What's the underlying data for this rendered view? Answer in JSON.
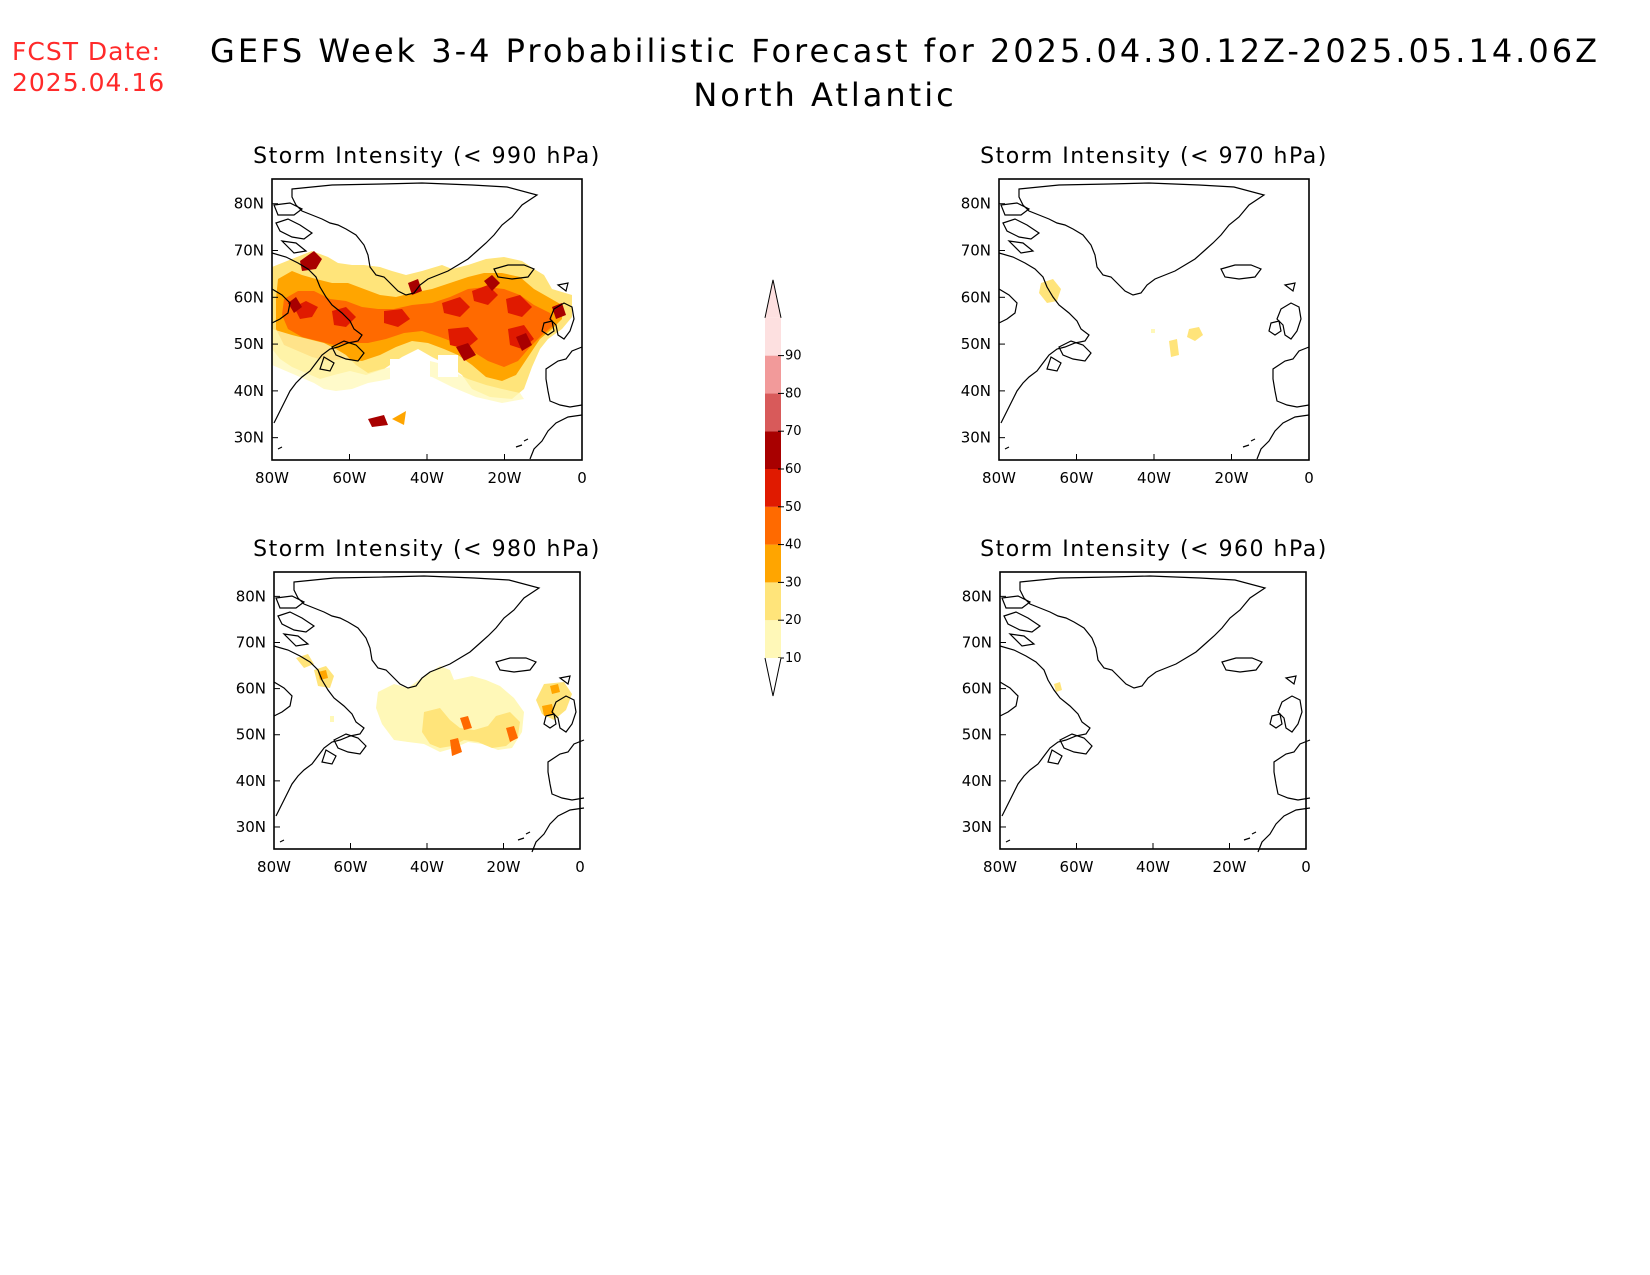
{
  "header": {
    "fcst_label": "FCST Date:",
    "fcst_date": "2025.04.16",
    "title": "GEFS Week 3-4 Probabilistic Forecast for 2025.04.30.12Z-2025.05.14.06Z",
    "subtitle": "North Atlantic"
  },
  "axes": {
    "lon_labels": [
      "80W",
      "60W",
      "40W",
      "20W",
      "0"
    ],
    "lat_labels": [
      "80N",
      "70N",
      "60N",
      "50N",
      "40N",
      "30N"
    ]
  },
  "colorbar": {
    "labels": [
      "10",
      "20",
      "30",
      "40",
      "50",
      "60",
      "70",
      "80",
      "90"
    ],
    "colors": [
      "#fff8b8",
      "#ffe47a",
      "#ffa500",
      "#ff6a00",
      "#e01a00",
      "#a80000",
      "#d85a5a",
      "#f29a9a",
      "#fde0e0"
    ]
  },
  "panels": [
    {
      "title": "Storm Intensity (< 990 hPa)"
    },
    {
      "title": "Storm Intensity (< 970 hPa)"
    },
    {
      "title": "Storm Intensity (< 980 hPa)"
    },
    {
      "title": "Storm Intensity (< 960 hPa)"
    }
  ]
}
